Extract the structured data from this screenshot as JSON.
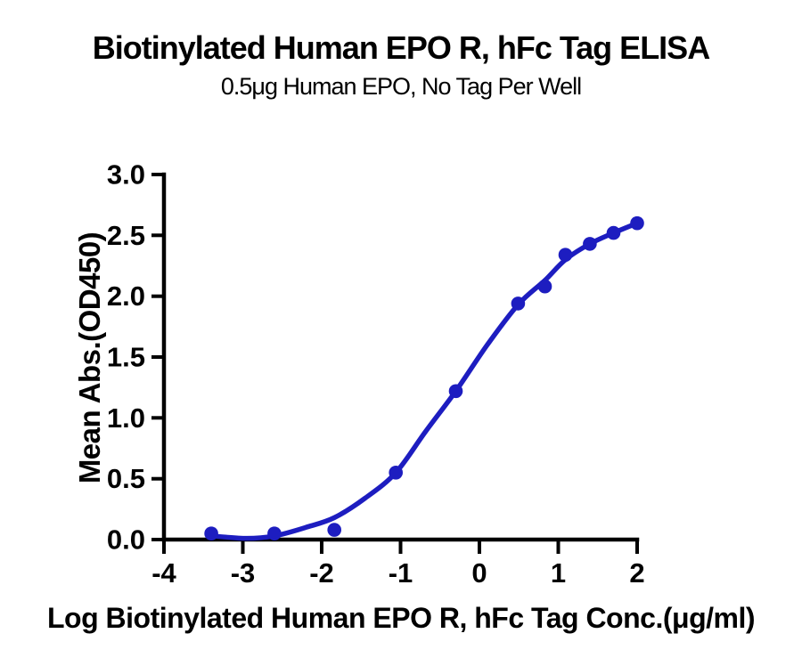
{
  "colors": {
    "curve_blue": "#1d1dc0",
    "axis_black": "#000000",
    "background": "#ffffff"
  },
  "chart_data": {
    "type": "scatter",
    "title": "Biotinylated Human EPO R, hFc Tag ELISA",
    "subtitle": "0.5μg Human EPO, No Tag Per Well",
    "xlabel": "Log Biotinylated Human EPO R, hFc Tag Conc.(μg/ml)",
    "ylabel": "Mean Abs.(OD450)",
    "xlim": [
      -4,
      2
    ],
    "ylim": [
      0,
      3
    ],
    "grid": false,
    "legend": "none",
    "xticks": {
      "values": [
        -4,
        -3,
        -2,
        -1,
        0,
        1,
        2
      ],
      "labels": [
        "-4",
        "-3",
        "-2",
        "-1",
        "0",
        "1",
        "2"
      ]
    },
    "yticks": {
      "values": [
        0,
        0.5,
        1,
        1.5,
        2,
        2.5,
        3
      ],
      "labels": [
        "0.0",
        "0.5",
        "1.0",
        "1.5",
        "2.0",
        "2.5",
        "3.0"
      ]
    },
    "series": [
      {
        "name": "Biotinylated Human EPO R, hFc Tag",
        "marker": "circle",
        "marker_color": "#1d1dc0",
        "line_color": "#1d1dc0",
        "x": [
          -3.4,
          -2.6,
          -1.84,
          -1.06,
          -0.3,
          0.49,
          0.83,
          1.09,
          1.4,
          1.7,
          2.0
        ],
        "y": [
          0.05,
          0.05,
          0.08,
          0.55,
          1.22,
          1.94,
          2.08,
          2.34,
          2.43,
          2.52,
          2.6
        ]
      }
    ],
    "fit_curve": {
      "description": "4PL sigmoidal fit drawn from first to last data point",
      "x": [
        -3.4,
        -2.95,
        -2.6,
        -2.2,
        -1.84,
        -1.45,
        -1.06,
        -0.68,
        -0.3,
        0.1,
        0.49,
        0.83,
        1.09,
        1.4,
        1.7,
        2.0
      ],
      "y": [
        0.03,
        0.01,
        0.03,
        0.1,
        0.18,
        0.34,
        0.55,
        0.89,
        1.22,
        1.6,
        1.93,
        2.13,
        2.3,
        2.43,
        2.52,
        2.6
      ]
    }
  }
}
